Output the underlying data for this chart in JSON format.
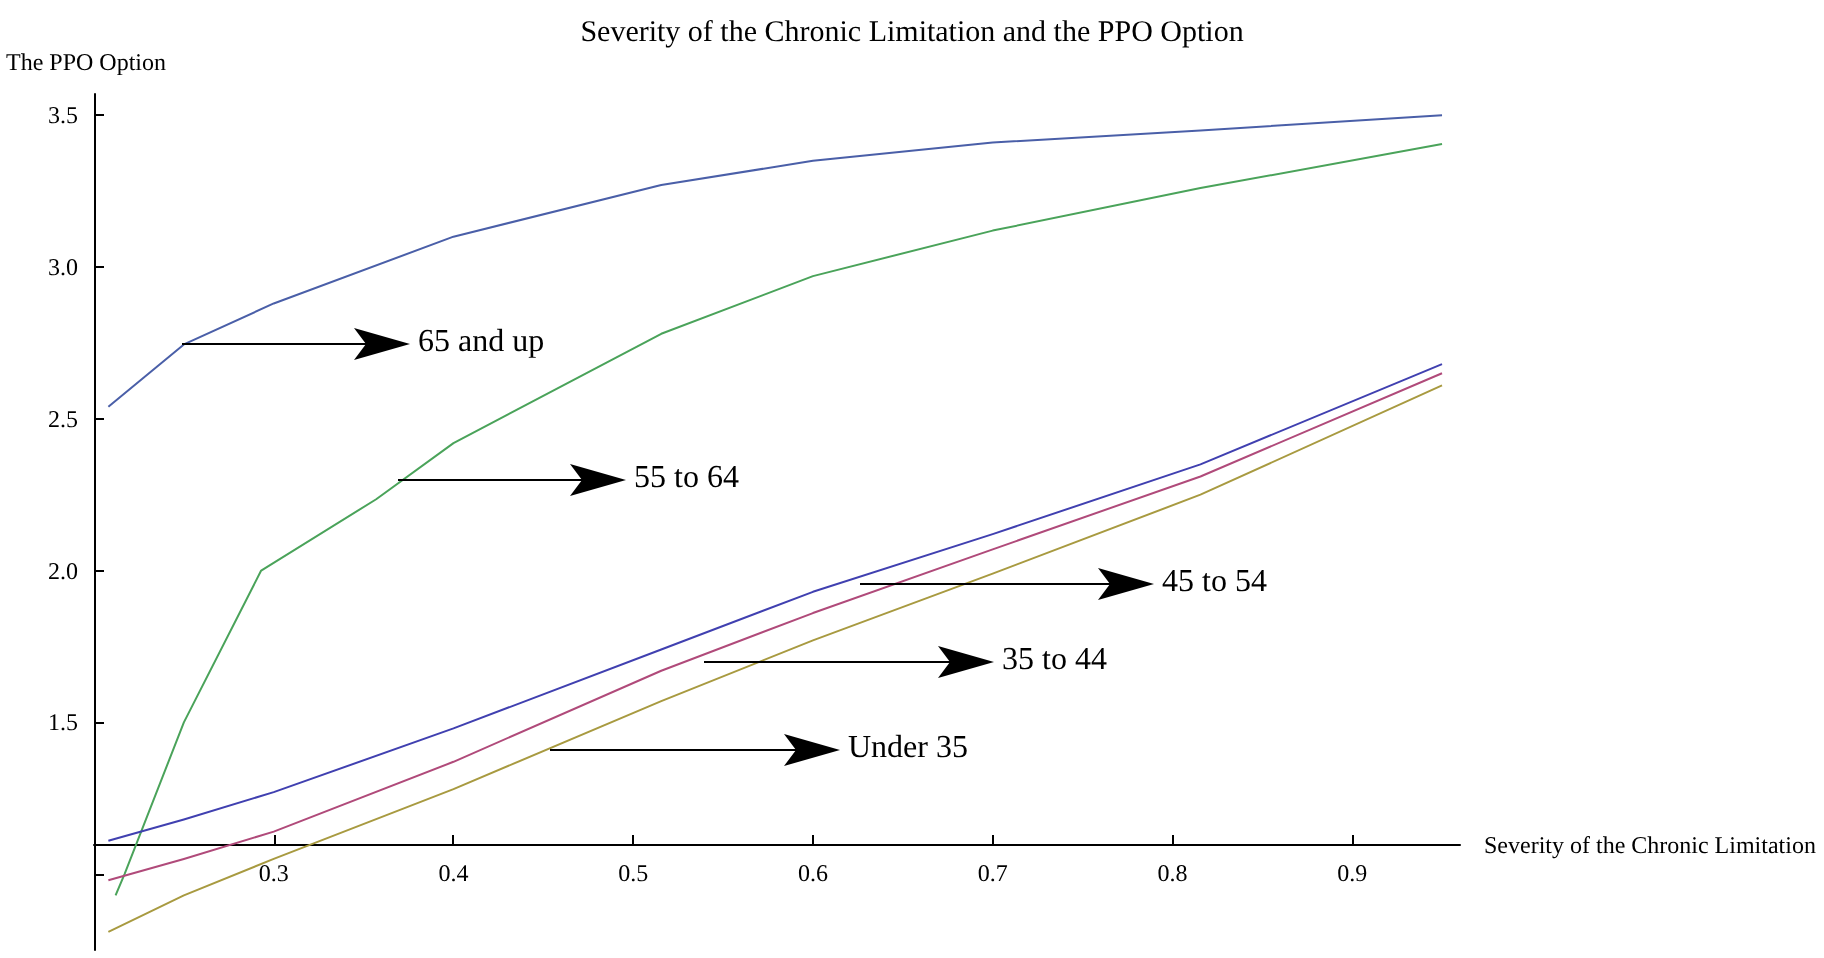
{
  "chart_data": {
    "type": "line",
    "title": "Severity of the Chronic Limitation and the PPO Option",
    "xlabel": "Severity of the Chronic Limitation",
    "ylabel": "The PPO Option",
    "x": [
      0.208,
      0.25,
      0.3,
      0.4,
      0.5156,
      0.6,
      0.7,
      0.8156,
      0.95
    ],
    "series": [
      {
        "color": "#4a5fa8",
        "values": [
          2.54,
          2.745,
          2.88,
          3.1,
          3.27,
          3.35,
          3.41,
          3.45,
          3.5
        ]
      },
      {
        "color": "#4aa35a",
        "x": [
          0.212,
          0.217,
          0.25,
          0.293,
          0.357,
          0.4,
          0.5156,
          0.6,
          0.7,
          0.8156,
          0.95
        ],
        "values": [
          0.93,
          1.0,
          1.5,
          2.0,
          2.235,
          2.42,
          2.78,
          2.97,
          3.12,
          3.26,
          3.405
        ]
      },
      {
        "color": "#4040b0",
        "values": [
          1.11,
          1.18,
          1.27,
          1.48,
          1.74,
          1.93,
          2.12,
          2.35,
          2.68
        ]
      },
      {
        "color": "#b04a7a",
        "values": [
          0.98,
          1.05,
          1.14,
          1.37,
          1.67,
          1.86,
          2.07,
          2.31,
          2.65
        ]
      },
      {
        "color": "#a89a40",
        "values": [
          0.81,
          0.93,
          1.05,
          1.28,
          1.57,
          1.77,
          1.99,
          2.25,
          2.61
        ]
      }
    ],
    "annotations": [
      "65 and up",
      "55 to 64",
      "45 to 54",
      "35 to 44",
      "Under 35"
    ],
    "xlim": [
      0.2,
      0.96
    ],
    "xticks": [
      0.3,
      0.4,
      0.5,
      0.6,
      0.7,
      0.8,
      0.9
    ],
    "ylim": [
      0.75,
      3.57
    ],
    "yticks": [
      {
        "value": 1,
        "label": null
      },
      1.5,
      {
        "value": 2,
        "label": "2.0"
      },
      2.5,
      {
        "value": 3,
        "label": "3.0"
      },
      3.5
    ],
    "grid": false,
    "marker": "none"
  }
}
